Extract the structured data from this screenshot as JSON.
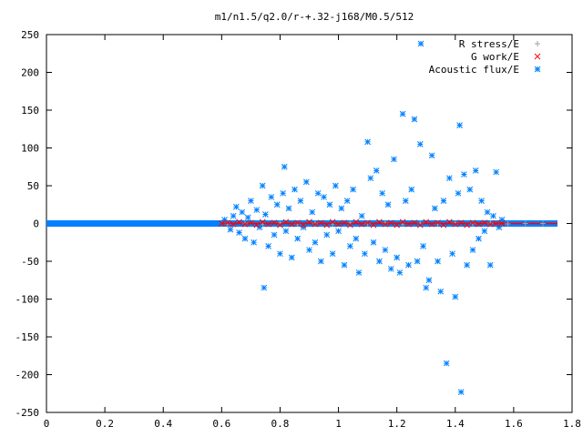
{
  "chart_data": {
    "type": "scatter",
    "title": "m1/n1.5/q2.0/r-+.32-j168/M0.5/512",
    "xlim": [
      0,
      1.8
    ],
    "ylim": [
      -250,
      250
    ],
    "x_ticks": [
      0,
      0.2,
      0.4,
      0.6,
      0.8,
      1,
      1.2,
      1.4,
      1.6,
      1.8
    ],
    "y_ticks": [
      -250,
      -200,
      -150,
      -100,
      -50,
      0,
      50,
      100,
      150,
      200,
      250
    ],
    "x_tick_labels": [
      "0",
      "0.2",
      "0.4",
      "0.6",
      "0.8",
      "1",
      "1.2",
      "1.4",
      "1.6",
      "1.8"
    ],
    "y_tick_labels": [
      "-250",
      "-200",
      "-150",
      "-100",
      "-50",
      "0",
      "50",
      "100",
      "150",
      "200",
      "250"
    ],
    "grid": false,
    "legend_position": "top-right",
    "legend_sample_marker": "*",
    "series": [
      {
        "name": "R stress/E",
        "marker": "+",
        "color": "#a0a0a0",
        "points": [
          [
            0.62,
            -1
          ],
          [
            0.68,
            0.5
          ],
          [
            0.74,
            -1
          ],
          [
            0.8,
            1
          ],
          [
            0.86,
            -1
          ],
          [
            0.92,
            0.5
          ],
          [
            0.98,
            -1
          ],
          [
            1.04,
            1
          ],
          [
            1.1,
            -0.5
          ],
          [
            1.16,
            1
          ],
          [
            1.22,
            -1
          ],
          [
            1.28,
            0.5
          ],
          [
            1.34,
            -1
          ],
          [
            1.4,
            1
          ],
          [
            1.46,
            -0.5
          ],
          [
            1.52,
            0.5
          ],
          [
            1.58,
            -0.5
          ],
          [
            1.64,
            0
          ],
          [
            1.7,
            0
          ]
        ]
      },
      {
        "name": "G work/E",
        "marker": "x",
        "color": "#ff0000",
        "points": [
          [
            0.6,
            0
          ],
          [
            0.62,
            1
          ],
          [
            0.64,
            -1
          ],
          [
            0.66,
            2
          ],
          [
            0.68,
            -1
          ],
          [
            0.7,
            1
          ],
          [
            0.72,
            -2
          ],
          [
            0.74,
            2
          ],
          [
            0.76,
            -1
          ],
          [
            0.78,
            1
          ],
          [
            0.8,
            -2
          ],
          [
            0.82,
            2
          ],
          [
            0.84,
            -1
          ],
          [
            0.86,
            1
          ],
          [
            0.88,
            -2
          ],
          [
            0.9,
            2
          ],
          [
            0.92,
            -1
          ],
          [
            0.94,
            1
          ],
          [
            0.96,
            -2
          ],
          [
            0.98,
            2
          ],
          [
            1.0,
            -1
          ],
          [
            1.02,
            1
          ],
          [
            1.04,
            -2
          ],
          [
            1.06,
            2
          ],
          [
            1.08,
            -1
          ],
          [
            1.1,
            1
          ],
          [
            1.12,
            -2
          ],
          [
            1.14,
            2
          ],
          [
            1.16,
            -1
          ],
          [
            1.18,
            1
          ],
          [
            1.2,
            -2
          ],
          [
            1.22,
            2
          ],
          [
            1.24,
            -1
          ],
          [
            1.26,
            1
          ],
          [
            1.28,
            -2
          ],
          [
            1.3,
            2
          ],
          [
            1.32,
            -1
          ],
          [
            1.34,
            1
          ],
          [
            1.36,
            -2
          ],
          [
            1.38,
            2
          ],
          [
            1.4,
            -1
          ],
          [
            1.42,
            1
          ],
          [
            1.44,
            -2
          ],
          [
            1.46,
            1
          ],
          [
            1.48,
            -1
          ],
          [
            1.5,
            1
          ],
          [
            1.52,
            -1
          ],
          [
            1.54,
            0
          ],
          [
            1.56,
            0
          ]
        ]
      },
      {
        "name": "Acoustic flux/E",
        "marker": "*",
        "color": "#0080ff",
        "points": [
          [
            0.61,
            5
          ],
          [
            0.63,
            -8
          ],
          [
            0.64,
            10
          ],
          [
            0.65,
            22
          ],
          [
            0.66,
            -12
          ],
          [
            0.67,
            15
          ],
          [
            0.68,
            -20
          ],
          [
            0.69,
            8
          ],
          [
            0.7,
            30
          ],
          [
            0.71,
            -25
          ],
          [
            0.72,
            18
          ],
          [
            0.73,
            -5
          ],
          [
            0.74,
            50
          ],
          [
            0.745,
            -85
          ],
          [
            0.75,
            12
          ],
          [
            0.76,
            -30
          ],
          [
            0.77,
            35
          ],
          [
            0.78,
            -15
          ],
          [
            0.79,
            25
          ],
          [
            0.8,
            -40
          ],
          [
            0.81,
            40
          ],
          [
            0.815,
            75
          ],
          [
            0.82,
            -10
          ],
          [
            0.83,
            20
          ],
          [
            0.84,
            -45
          ],
          [
            0.85,
            45
          ],
          [
            0.86,
            -20
          ],
          [
            0.87,
            30
          ],
          [
            0.88,
            -5
          ],
          [
            0.89,
            55
          ],
          [
            0.9,
            -35
          ],
          [
            0.91,
            15
          ],
          [
            0.92,
            -25
          ],
          [
            0.93,
            40
          ],
          [
            0.94,
            -50
          ],
          [
            0.95,
            35
          ],
          [
            0.96,
            -15
          ],
          [
            0.97,
            25
          ],
          [
            0.98,
            -40
          ],
          [
            0.99,
            50
          ],
          [
            1.0,
            -10
          ],
          [
            1.01,
            20
          ],
          [
            1.02,
            -55
          ],
          [
            1.03,
            30
          ],
          [
            1.04,
            -30
          ],
          [
            1.05,
            45
          ],
          [
            1.06,
            -20
          ],
          [
            1.07,
            -65
          ],
          [
            1.08,
            10
          ],
          [
            1.09,
            -40
          ],
          [
            1.1,
            108
          ],
          [
            1.11,
            60
          ],
          [
            1.12,
            -25
          ],
          [
            1.13,
            70
          ],
          [
            1.14,
            -50
          ],
          [
            1.15,
            40
          ],
          [
            1.16,
            -35
          ],
          [
            1.17,
            25
          ],
          [
            1.18,
            -60
          ],
          [
            1.19,
            85
          ],
          [
            1.2,
            -45
          ],
          [
            1.21,
            -65
          ],
          [
            1.22,
            145
          ],
          [
            1.23,
            30
          ],
          [
            1.24,
            -55
          ],
          [
            1.25,
            45
          ],
          [
            1.26,
            138
          ],
          [
            1.27,
            -50
          ],
          [
            1.28,
            105
          ],
          [
            1.29,
            -30
          ],
          [
            1.3,
            -85
          ],
          [
            1.31,
            -75
          ],
          [
            1.32,
            90
          ],
          [
            1.33,
            20
          ],
          [
            1.34,
            -50
          ],
          [
            1.35,
            -90
          ],
          [
            1.36,
            30
          ],
          [
            1.37,
            -185
          ],
          [
            1.38,
            60
          ],
          [
            1.39,
            -40
          ],
          [
            1.4,
            -97
          ],
          [
            1.41,
            40
          ],
          [
            1.415,
            130
          ],
          [
            1.42,
            -223
          ],
          [
            1.43,
            65
          ],
          [
            1.44,
            -55
          ],
          [
            1.45,
            45
          ],
          [
            1.46,
            -35
          ],
          [
            1.47,
            70
          ],
          [
            1.48,
            -20
          ],
          [
            1.49,
            30
          ],
          [
            1.5,
            -10
          ],
          [
            1.51,
            15
          ],
          [
            1.52,
            -55
          ],
          [
            1.53,
            10
          ],
          [
            1.54,
            68
          ],
          [
            1.55,
            -5
          ],
          [
            1.56,
            5
          ]
        ]
      }
    ]
  }
}
